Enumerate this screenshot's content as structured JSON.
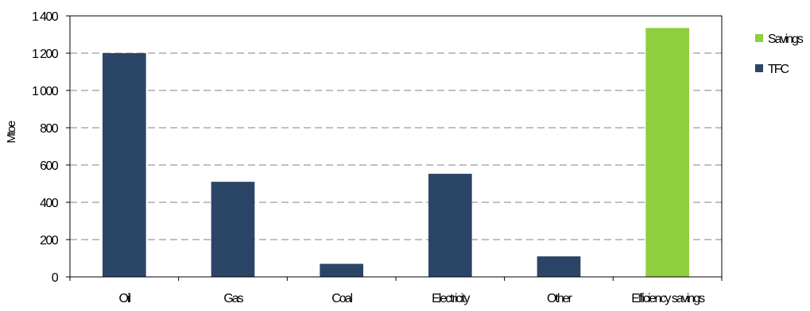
{
  "chart_data": {
    "type": "bar",
    "title": "",
    "xlabel": "",
    "ylabel": "Mtoe",
    "ylim": [
      0,
      1400
    ],
    "yticks": [
      0,
      200,
      400,
      600,
      800,
      1000,
      1200,
      1400
    ],
    "ytick_labels": [
      "0",
      "200",
      "400",
      "600",
      "800",
      "1 000",
      "1 200",
      "1 400"
    ],
    "categories": [
      "Oil",
      "Gas",
      "Coal",
      "Electricity",
      "Other",
      "Efficiency savings"
    ],
    "series": [
      {
        "name": "TFC",
        "color": "#2b4566",
        "values": [
          1200,
          510,
          70,
          553,
          110,
          null
        ]
      },
      {
        "name": "Savings",
        "color": "#8fce3f",
        "values": [
          null,
          null,
          null,
          null,
          null,
          1335
        ]
      }
    ],
    "grid": true,
    "grid_style": "dashed",
    "legend": {
      "position": "right",
      "order": [
        "Savings",
        "TFC"
      ]
    }
  }
}
